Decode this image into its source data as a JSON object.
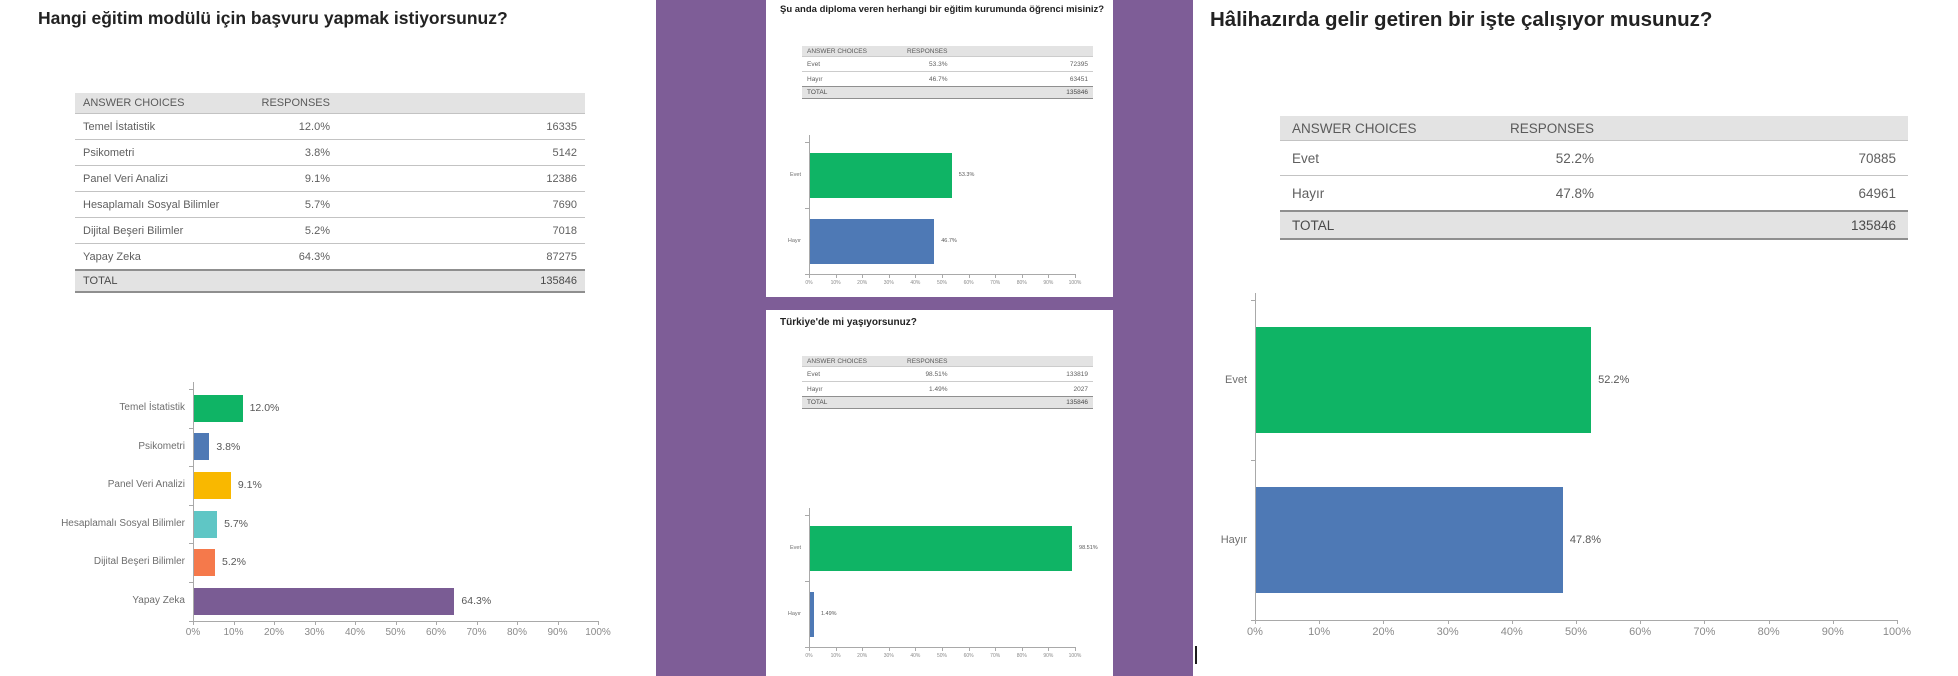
{
  "page": {
    "background": "#ffffff",
    "purple_band_color": "#7E5D97"
  },
  "left_panel": {
    "title": "Hangi eğitim modülü için başvuru yapmak istiyorsunuz?"
  },
  "middle_panel": {
    "card1_title": "Şu anda diploma veren herhangi bir eğitim kurumunda öğrenci misiniz?",
    "card2_title": "Türkiye'de mi yaşıyorsunuz?"
  },
  "right_panel": {
    "title": "Hâlihazırda gelir getiren bir işte çalışıyor musunuz?"
  },
  "tables": {
    "left": {
      "headers": [
        "ANSWER CHOICES",
        "RESPONSES"
      ],
      "rows": [
        {
          "label": "Temel İstatistik",
          "pct": "12.0%",
          "count": "16335"
        },
        {
          "label": "Psikometri",
          "pct": "3.8%",
          "count": "5142"
        },
        {
          "label": "Panel Veri Analizi",
          "pct": "9.1%",
          "count": "12386"
        },
        {
          "label": "Hesaplamalı Sosyal Bilimler",
          "pct": "5.7%",
          "count": "7690"
        },
        {
          "label": "Dijital Beşeri Bilimler",
          "pct": "5.2%",
          "count": "7018"
        },
        {
          "label": "Yapay Zeka",
          "pct": "64.3%",
          "count": "87275"
        }
      ],
      "total": {
        "label": "TOTAL",
        "value": "135846"
      }
    },
    "card1": {
      "headers": [
        "ANSWER CHOICES",
        "RESPONSES"
      ],
      "rows": [
        {
          "label": "Evet",
          "pct": "53.3%",
          "count": "72395"
        },
        {
          "label": "Hayır",
          "pct": "46.7%",
          "count": "63451"
        }
      ],
      "total": {
        "label": "TOTAL",
        "value": "135846"
      }
    },
    "card2": {
      "headers": [
        "ANSWER CHOICES",
        "RESPONSES"
      ],
      "rows": [
        {
          "label": "Evet",
          "pct": "98.51%",
          "count": "133819"
        },
        {
          "label": "Hayır",
          "pct": "1.49%",
          "count": "2027"
        }
      ],
      "total": {
        "label": "TOTAL",
        "value": "135846"
      }
    },
    "right": {
      "headers": [
        "ANSWER CHOICES",
        "RESPONSES"
      ],
      "rows": [
        {
          "label": "Evet",
          "pct": "52.2%",
          "count": "70885"
        },
        {
          "label": "Hayır",
          "pct": "47.8%",
          "count": "64961"
        }
      ],
      "total": {
        "label": "TOTAL",
        "value": "135846"
      }
    }
  },
  "chart_data": [
    {
      "type": "bar",
      "orientation": "horizontal",
      "title": "Hangi eğitim modülü için başvuru yapmak istiyorsunuz?",
      "categories": [
        "Temel İstatistik",
        "Psikometri",
        "Panel Veri Analizi",
        "Hesaplamalı Sosyal Bilimler",
        "Dijital Beşeri Bilimler",
        "Yapay Zeka"
      ],
      "values": [
        12.0,
        3.8,
        9.1,
        5.7,
        5.2,
        64.3
      ],
      "value_labels": [
        "12.0%",
        "3.8%",
        "9.1%",
        "5.7%",
        "5.2%",
        "64.3%"
      ],
      "counts": [
        16335,
        5142,
        12386,
        7690,
        7018,
        87275
      ],
      "total": 135846,
      "xlim": [
        0,
        100
      ],
      "x_ticks": [
        "0%",
        "10%",
        "20%",
        "30%",
        "40%",
        "50%",
        "60%",
        "70%",
        "80%",
        "90%",
        "100%"
      ],
      "grid": false,
      "legend": "none",
      "bar_colors": [
        "#0FB465",
        "#4E79B5",
        "#F9B800",
        "#5FC6C5",
        "#F5794B",
        "#7A5C94"
      ]
    },
    {
      "type": "bar",
      "orientation": "horizontal",
      "title": "Şu anda diploma veren herhangi bir eğitim kurumunda öğrenci misiniz?",
      "categories": [
        "Evet",
        "Hayır"
      ],
      "values": [
        53.3,
        46.7
      ],
      "value_labels": [
        "53.3%",
        "46.7%"
      ],
      "counts": [
        72395,
        63451
      ],
      "total": 135846,
      "xlim": [
        0,
        100
      ],
      "x_ticks": [
        "0%",
        "10%",
        "20%",
        "30%",
        "40%",
        "50%",
        "60%",
        "70%",
        "80%",
        "90%",
        "100%"
      ],
      "grid": false,
      "legend": "none",
      "bar_colors": [
        "#0FB465",
        "#4E79B5"
      ]
    },
    {
      "type": "bar",
      "orientation": "horizontal",
      "title": "Türkiye'de mi yaşıyorsunuz?",
      "categories": [
        "Evet",
        "Hayır"
      ],
      "values": [
        98.51,
        1.49
      ],
      "value_labels": [
        "98.51%",
        "1.49%"
      ],
      "counts": [
        133819,
        2027
      ],
      "total": 135846,
      "xlim": [
        0,
        100
      ],
      "x_ticks": [
        "0%",
        "10%",
        "20%",
        "30%",
        "40%",
        "50%",
        "60%",
        "70%",
        "80%",
        "90%",
        "100%"
      ],
      "grid": false,
      "legend": "none",
      "bar_colors": [
        "#0FB465",
        "#4E79B5"
      ]
    },
    {
      "type": "bar",
      "orientation": "horizontal",
      "title": "Hâlihazırda gelir getiren bir işte çalışıyor musunuz?",
      "categories": [
        "Evet",
        "Hayır"
      ],
      "values": [
        52.2,
        47.8
      ],
      "value_labels": [
        "52.2%",
        "47.8%"
      ],
      "counts": [
        70885,
        64961
      ],
      "total": 135846,
      "xlim": [
        0,
        100
      ],
      "x_ticks": [
        "0%",
        "10%",
        "20%",
        "30%",
        "40%",
        "50%",
        "60%",
        "70%",
        "80%",
        "90%",
        "100%"
      ],
      "grid": false,
      "legend": "none",
      "bar_colors": [
        "#0FB465",
        "#4E79B5"
      ]
    }
  ]
}
